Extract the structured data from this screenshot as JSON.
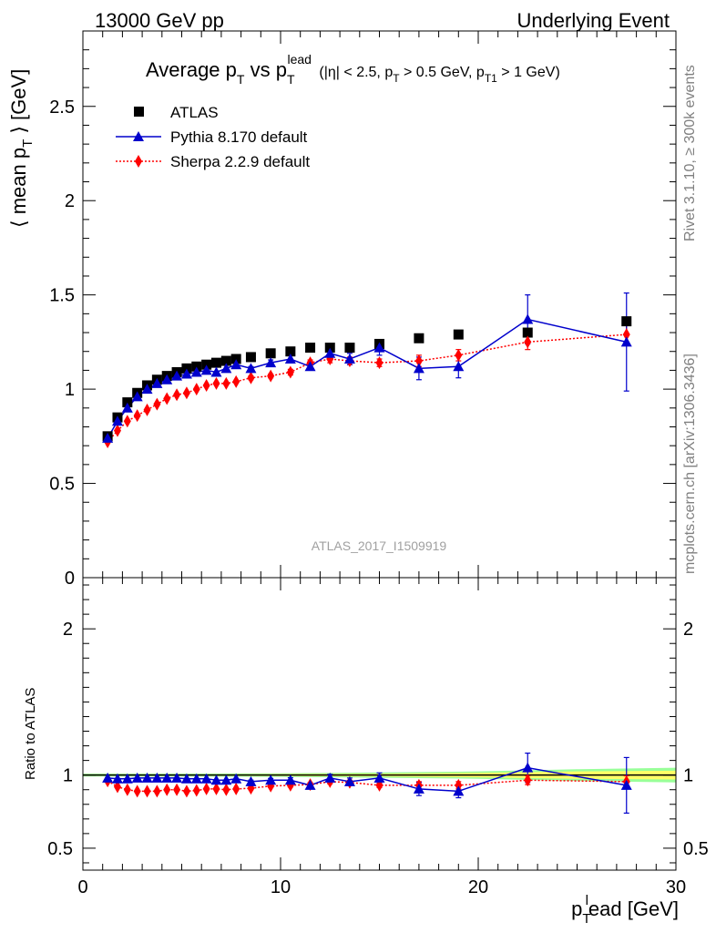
{
  "header": {
    "left": "13000 GeV pp",
    "right": "Underlying Event"
  },
  "plot_title": {
    "t1": "Average p",
    "t2": "T",
    "t3": " vs p",
    "t4": "T",
    "t5": "lead",
    "t6": " (|η| < 2.5, p",
    "t7": "T",
    "t8": " > 0.5 GeV, p",
    "t9": "T1",
    "t10": " > 1 GeV)"
  },
  "side_texts": {
    "rivet": "Rivet 3.1.10, ≥ 300k events",
    "mcplots": "mcplots.cern.ch [arXiv:1306.3436]"
  },
  "analysis_label": "ATLAS_2017_I1509919",
  "axis_labels": {
    "ylabel_main": {
      "p1": "⟨ mean p",
      "sub": "T",
      "p2": " ⟩ [GeV]"
    },
    "ylabel_ratio": "Ratio to ATLAS",
    "xlabel": {
      "p1": "p",
      "sub": "T",
      "sup": "l",
      "p2": "ead [GeV]"
    }
  },
  "colors": {
    "atlas": "#000000",
    "pythia": "#0000cc",
    "sherpa": "#ff0000",
    "band_inner": "#ffff66",
    "band_outer": "#99ff99",
    "ratio_line": "#000000"
  },
  "chart_data": [
    {
      "type": "scatter",
      "panel": "main",
      "xlim": [
        0,
        30
      ],
      "ylim": [
        0,
        2.9
      ],
      "x_ticks": [
        0,
        10,
        20,
        30
      ],
      "y_ticks": [
        0.5,
        1,
        1.5,
        2,
        2.5
      ],
      "x_tick_labels": [
        "0",
        "10",
        "20",
        "30"
      ],
      "y_tick_labels": [
        "0",
        "0.5",
        "1",
        "1.5",
        "2",
        "2.5"
      ],
      "legend": "top-left",
      "series": [
        {
          "name": "ATLAS",
          "style": "square-markers",
          "x": [
            1.25,
            1.75,
            2.25,
            2.75,
            3.25,
            3.75,
            4.25,
            4.75,
            5.25,
            5.75,
            6.25,
            6.75,
            7.25,
            7.75,
            8.5,
            9.5,
            10.5,
            11.5,
            12.5,
            13.5,
            15,
            17,
            19,
            22.5,
            27.5
          ],
          "y": [
            0.75,
            0.85,
            0.93,
            0.98,
            1.02,
            1.05,
            1.07,
            1.09,
            1.11,
            1.12,
            1.13,
            1.14,
            1.15,
            1.16,
            1.17,
            1.19,
            1.2,
            1.22,
            1.22,
            1.22,
            1.24,
            1.27,
            1.29,
            1.3,
            1.36
          ]
        },
        {
          "name": "Pythia 8.170 default",
          "style": "line-triangles",
          "x": [
            1.25,
            1.75,
            2.25,
            2.75,
            3.25,
            3.75,
            4.25,
            4.75,
            5.25,
            5.75,
            6.25,
            6.75,
            7.25,
            7.75,
            8.5,
            9.5,
            10.5,
            11.5,
            12.5,
            13.5,
            15,
            17,
            19,
            22.5,
            27.5
          ],
          "y": [
            0.74,
            0.83,
            0.9,
            0.96,
            1.0,
            1.03,
            1.05,
            1.07,
            1.08,
            1.09,
            1.1,
            1.09,
            1.11,
            1.13,
            1.11,
            1.14,
            1.16,
            1.12,
            1.19,
            1.16,
            1.22,
            1.11,
            1.12,
            1.37,
            1.25
          ],
          "err": [
            0,
            0,
            0,
            0,
            0,
            0,
            0,
            0,
            0,
            0,
            0,
            0,
            0,
            0,
            0.01,
            0.015,
            0.02,
            0.02,
            0.03,
            0.03,
            0.04,
            0.06,
            0.06,
            0.13,
            0.26
          ]
        },
        {
          "name": "Sherpa 2.2.9 default",
          "style": "dotted-diamonds",
          "x": [
            1.25,
            1.75,
            2.25,
            2.75,
            3.25,
            3.75,
            4.25,
            4.75,
            5.25,
            5.75,
            6.25,
            6.75,
            7.25,
            7.75,
            8.5,
            9.5,
            10.5,
            11.5,
            12.5,
            13.5,
            15,
            17,
            19,
            22.5,
            27.5
          ],
          "y": [
            0.72,
            0.78,
            0.83,
            0.86,
            0.89,
            0.92,
            0.95,
            0.97,
            0.98,
            1.0,
            1.02,
            1.03,
            1.03,
            1.04,
            1.06,
            1.07,
            1.09,
            1.14,
            1.16,
            1.15,
            1.14,
            1.15,
            1.18,
            1.25,
            1.29
          ],
          "err": [
            0,
            0,
            0,
            0,
            0,
            0,
            0,
            0,
            0,
            0,
            0,
            0,
            0,
            0,
            0.01,
            0.01,
            0.015,
            0.015,
            0.02,
            0.02,
            0.02,
            0.03,
            0.03,
            0.04,
            0.05
          ]
        }
      ]
    },
    {
      "type": "scatter",
      "panel": "ratio",
      "xlim": [
        0,
        30
      ],
      "ylim": [
        0.35,
        2.35
      ],
      "y_ticks": [
        0.5,
        1,
        2
      ],
      "y_tick_labels": [
        "0.5",
        "1",
        "2"
      ],
      "reference": 1,
      "band": {
        "x": [
          0,
          5,
          10,
          15,
          20,
          25,
          30
        ],
        "inner": [
          0.005,
          0.005,
          0.007,
          0.01,
          0.015,
          0.025,
          0.03
        ],
        "outer": [
          0.01,
          0.01,
          0.012,
          0.018,
          0.025,
          0.04,
          0.05
        ]
      },
      "series": [
        {
          "name": "Pythia 8.170 default",
          "x": [
            1.25,
            1.75,
            2.25,
            2.75,
            3.25,
            3.75,
            4.25,
            4.75,
            5.25,
            5.75,
            6.25,
            6.75,
            7.25,
            7.75,
            8.5,
            9.5,
            10.5,
            11.5,
            12.5,
            13.5,
            15,
            17,
            19,
            22.5,
            27.5
          ],
          "y": [
            0.98,
            0.975,
            0.975,
            0.98,
            0.98,
            0.98,
            0.98,
            0.98,
            0.975,
            0.975,
            0.975,
            0.965,
            0.965,
            0.975,
            0.955,
            0.965,
            0.965,
            0.93,
            0.98,
            0.955,
            0.98,
            0.905,
            0.89,
            1.05,
            0.93
          ],
          "err": [
            0,
            0,
            0,
            0,
            0,
            0,
            0,
            0,
            0,
            0,
            0,
            0,
            0,
            0,
            0.01,
            0.012,
            0.017,
            0.017,
            0.025,
            0.025,
            0.035,
            0.045,
            0.045,
            0.1,
            0.19
          ]
        },
        {
          "name": "Sherpa 2.2.9 default",
          "x": [
            1.25,
            1.75,
            2.25,
            2.75,
            3.25,
            3.75,
            4.25,
            4.75,
            5.25,
            5.75,
            6.25,
            6.75,
            7.25,
            7.75,
            8.5,
            9.5,
            10.5,
            11.5,
            12.5,
            13.5,
            15,
            17,
            19,
            22.5,
            27.5
          ],
          "y": [
            0.96,
            0.92,
            0.9,
            0.89,
            0.89,
            0.89,
            0.9,
            0.9,
            0.89,
            0.895,
            0.905,
            0.905,
            0.9,
            0.905,
            0.91,
            0.925,
            0.93,
            0.935,
            0.955,
            0.95,
            0.93,
            0.93,
            0.93,
            0.965,
            0.955
          ],
          "err": [
            0,
            0,
            0,
            0,
            0,
            0,
            0,
            0,
            0,
            0,
            0,
            0,
            0,
            0,
            0.01,
            0.01,
            0.012,
            0.012,
            0.015,
            0.015,
            0.015,
            0.025,
            0.025,
            0.03,
            0.04
          ]
        }
      ]
    }
  ]
}
